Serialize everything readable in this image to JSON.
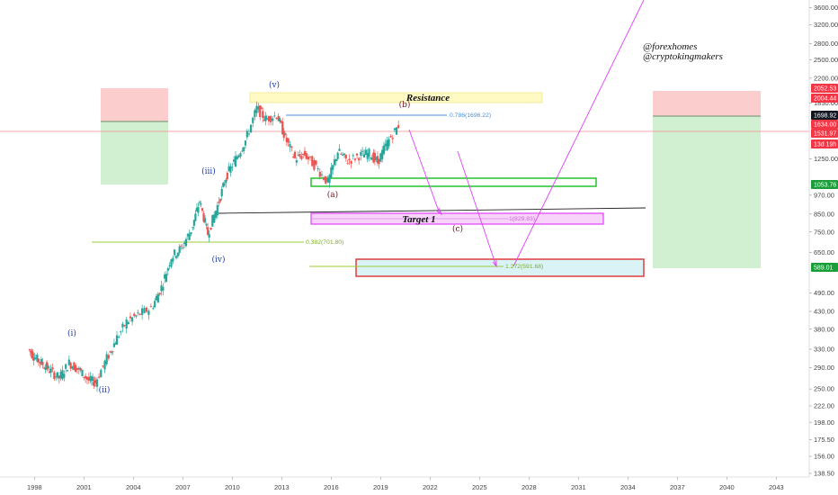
{
  "chart_data": {
    "type": "candlestick",
    "title": "",
    "xlabel": "",
    "ylabel": "",
    "x_ticks": [
      "1998",
      "2001",
      "2004",
      "2007",
      "2010",
      "2013",
      "2016",
      "2019",
      "2022",
      "2025",
      "2028",
      "2031",
      "2034",
      "2037",
      "2040",
      "2043"
    ],
    "y_ticks": [
      "3600.00",
      "3200.00",
      "2800.00",
      "2500.00",
      "2200.00",
      "1850.00",
      "1250.00",
      "970.00",
      "850.00",
      "750.00",
      "650.00",
      "490.00",
      "430.00",
      "380.00",
      "330.00",
      "290.00",
      "250.00",
      "222.00",
      "198.00",
      "175.50",
      "156.00",
      "138.50"
    ],
    "y_scale": "log",
    "ylim": [
      135,
      3800
    ],
    "xlim": [
      1997.0,
      2045.0
    ],
    "candles_approx": [
      {
        "t": 1997.7,
        "close": 330
      },
      {
        "t": 1998.0,
        "close": 315
      },
      {
        "t": 1998.5,
        "close": 300
      },
      {
        "t": 1999.0,
        "close": 285
      },
      {
        "t": 1999.6,
        "close": 270
      },
      {
        "t": 2000.2,
        "close": 300
      },
      {
        "t": 2000.8,
        "close": 285
      },
      {
        "t": 2001.4,
        "close": 265
      },
      {
        "t": 2001.8,
        "close": 262
      },
      {
        "t": 2002.5,
        "close": 310
      },
      {
        "t": 2003.0,
        "close": 350
      },
      {
        "t": 2003.7,
        "close": 400
      },
      {
        "t": 2004.4,
        "close": 420
      },
      {
        "t": 2005.2,
        "close": 440
      },
      {
        "t": 2005.8,
        "close": 510
      },
      {
        "t": 2006.4,
        "close": 630
      },
      {
        "t": 2007.0,
        "close": 670
      },
      {
        "t": 2007.6,
        "close": 760
      },
      {
        "t": 2008.1,
        "close": 930
      },
      {
        "t": 2008.6,
        "close": 740
      },
      {
        "t": 2009.2,
        "close": 900
      },
      {
        "t": 2009.7,
        "close": 1100
      },
      {
        "t": 2010.3,
        "close": 1250
      },
      {
        "t": 2010.9,
        "close": 1420
      },
      {
        "t": 2011.6,
        "close": 1780
      },
      {
        "t": 2012.1,
        "close": 1650
      },
      {
        "t": 2012.8,
        "close": 1700
      },
      {
        "t": 2013.3,
        "close": 1450
      },
      {
        "t": 2013.9,
        "close": 1250
      },
      {
        "t": 2014.5,
        "close": 1290
      },
      {
        "t": 2015.2,
        "close": 1180
      },
      {
        "t": 2015.9,
        "close": 1060
      },
      {
        "t": 2016.5,
        "close": 1320
      },
      {
        "t": 2017.1,
        "close": 1230
      },
      {
        "t": 2017.8,
        "close": 1280
      },
      {
        "t": 2018.4,
        "close": 1300
      },
      {
        "t": 2018.9,
        "close": 1220
      },
      {
        "t": 2019.5,
        "close": 1400
      },
      {
        "t": 2020.2,
        "close": 1580
      }
    ],
    "wave_labels": [
      "(i)",
      "(ii)",
      "(iii)",
      "(iv)",
      "(v)",
      "(a)",
      "(b)",
      "(c)"
    ],
    "annotations": {
      "resistance": "Resistance",
      "target": "Target 1",
      "fib_786": "0.786(1696.22)",
      "fib_382": "0.382(701.80)",
      "fib_1": "1(829.83)",
      "fib_1272": "1.272(591.68)"
    },
    "price_tags": [
      {
        "text": "2052.53",
        "color": "#f23645"
      },
      {
        "text": "2004.44",
        "color": "#f23645"
      },
      {
        "text": "1698.92",
        "color": "#131722"
      },
      {
        "text": "1634.00",
        "color": "#f23645"
      },
      {
        "text": "1531.97",
        "color": "#f23645"
      },
      {
        "text": "13d 19h",
        "color": "#f23645"
      },
      {
        "text": "1053.76",
        "color": "#1b9e3a"
      },
      {
        "text": "589.01",
        "color": "#1b9e3a"
      }
    ],
    "authors": [
      "@forexhomes",
      "@cryptokingmakers"
    ],
    "grid": false,
    "colors": {
      "up": "#26a69a",
      "down": "#ef5350",
      "wave": "#1e3aa8",
      "abc": "#6b1620",
      "pink": "#e040fb",
      "fib_blue": "#4a90e2",
      "fib_green": "#9ccc3a"
    }
  }
}
